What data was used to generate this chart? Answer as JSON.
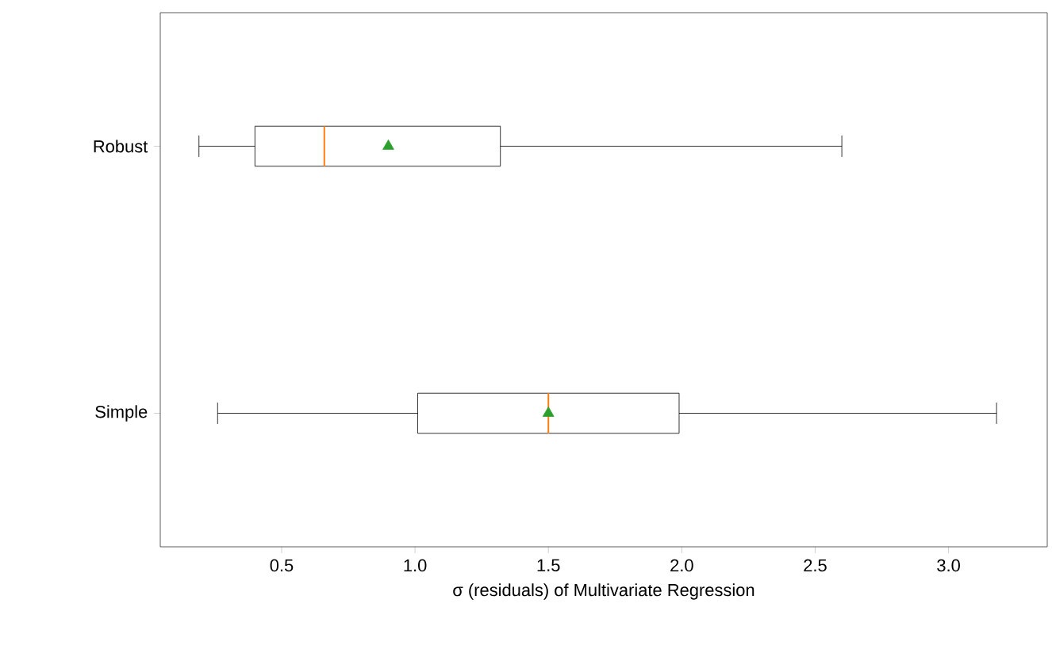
{
  "chart_data": {
    "type": "box",
    "orientation": "horizontal",
    "xlabel": "σ (residuals) of Multivariate Regression",
    "categories": [
      "Robust",
      "Simple"
    ],
    "xlim": [
      0.045,
      3.37
    ],
    "xticks": [
      {
        "value": 0.5,
        "label": "0.5"
      },
      {
        "value": 1,
        "label": "1.0"
      },
      {
        "value": 1.5,
        "label": "1.5"
      },
      {
        "value": 2,
        "label": "2.0"
      },
      {
        "value": 2.5,
        "label": "2.5"
      },
      {
        "value": 3,
        "label": "3.0"
      }
    ],
    "boxes": [
      {
        "low": 0.19,
        "q1": 0.4,
        "median": 0.66,
        "q3": 1.32,
        "high": 2.6,
        "mean": 0.9
      },
      {
        "low": 0.26,
        "q1": 1.01,
        "median": 1.5,
        "q3": 1.99,
        "high": 3.18,
        "mean": 1.5
      }
    ]
  }
}
